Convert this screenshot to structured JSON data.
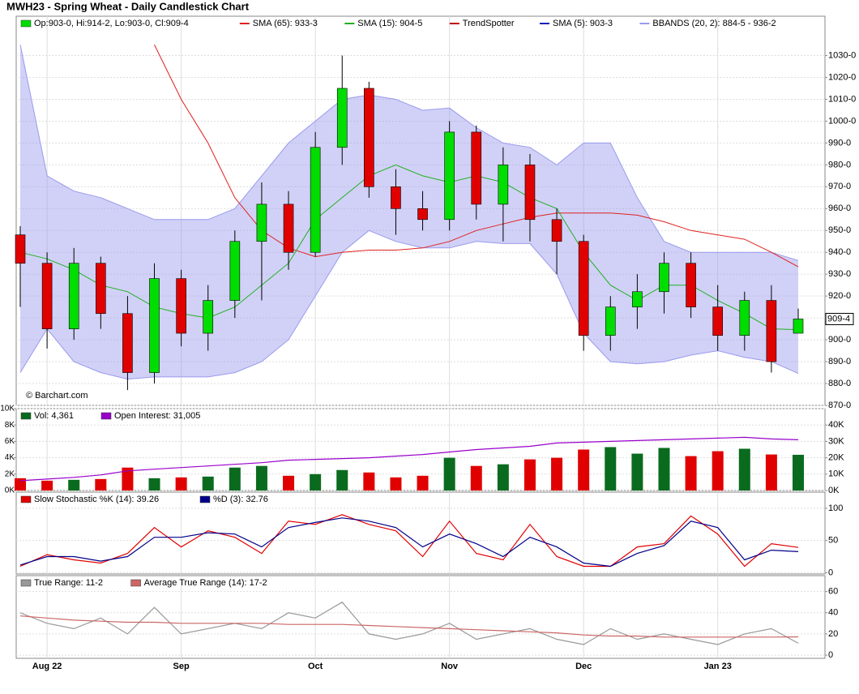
{
  "chart_data": [
    {
      "type": "candlestick",
      "title": "MWH23 - Spring Wheat - Daily Candlestick Chart",
      "ohlc_label": "Op:903-0, Hi:914-2, Lo:903-0, Cl:909-4",
      "credit": "© Barchart.com",
      "last_label": "909-4",
      "categories": [
        null,
        "Aug 22",
        null,
        null,
        null,
        null,
        "Sep",
        null,
        null,
        null,
        null,
        "Oct",
        null,
        null,
        null,
        null,
        "Nov",
        null,
        null,
        null,
        null,
        "Dec",
        null,
        null,
        null,
        null,
        "Jan 23",
        null,
        null,
        null
      ],
      "open": [
        948,
        935,
        905,
        935,
        912,
        885,
        928,
        903,
        918,
        945,
        962,
        940,
        988,
        1015,
        970,
        960,
        955,
        995,
        962,
        980,
        955,
        945,
        902,
        915,
        922,
        935,
        915,
        902,
        918,
        903
      ],
      "high": [
        952,
        940,
        942,
        938,
        920,
        935,
        932,
        925,
        950,
        972,
        968,
        995,
        1030,
        1018,
        978,
        968,
        1000,
        998,
        988,
        985,
        960,
        948,
        920,
        930,
        940,
        940,
        925,
        922,
        925,
        914.25
      ],
      "low": [
        915,
        896,
        900,
        905,
        877,
        880,
        897,
        895,
        910,
        918,
        932,
        938,
        980,
        965,
        948,
        950,
        950,
        955,
        945,
        945,
        930,
        895,
        895,
        905,
        912,
        910,
        895,
        895,
        885,
        903
      ],
      "close": [
        935,
        905,
        935,
        912,
        885,
        928,
        903,
        918,
        945,
        962,
        940,
        988,
        1015,
        970,
        960,
        955,
        995,
        962,
        980,
        955,
        945,
        902,
        915,
        922,
        935,
        915,
        902,
        918,
        890,
        909.5
      ],
      "up_color": "#00dd00",
      "down_color": "#e00000",
      "series": [
        {
          "name": "SMA (65): 933-3",
          "color": "#e02020",
          "values": [
            null,
            null,
            null,
            null,
            null,
            1035,
            1010,
            990,
            965,
            950,
            942,
            938,
            940,
            941,
            941,
            942,
            945,
            950,
            953,
            956,
            958,
            958,
            958,
            957,
            954,
            950,
            948,
            946,
            940,
            933.375
          ]
        },
        {
          "name": "SMA (15): 904-5",
          "color": "#20b020",
          "values": [
            940,
            937,
            932,
            925,
            922,
            915,
            912,
            910,
            915,
            925,
            935,
            955,
            965,
            975,
            980,
            975,
            972,
            975,
            972,
            965,
            960,
            940,
            925,
            918,
            925,
            925,
            918,
            912,
            905,
            904.625
          ]
        },
        {
          "name": "TrendSpotter",
          "color": "#c00000"
        },
        {
          "name": "SMA (5): 903-3",
          "color": "#1020c0"
        },
        {
          "name": "BBANDS (20, 2): 884-5 - 936-2",
          "color": "#9999ee",
          "upper": [
            1035,
            975,
            968,
            965,
            960,
            955,
            955,
            955,
            960,
            975,
            990,
            1000,
            1010,
            1012,
            1010,
            1005,
            1006,
            997,
            990,
            988,
            980,
            990,
            990,
            965,
            945,
            940,
            940,
            940,
            940,
            936.25
          ],
          "lower": [
            885,
            905,
            890,
            885,
            882,
            883,
            883,
            883,
            885,
            890,
            900,
            920,
            940,
            950,
            945,
            942,
            942,
            945,
            944,
            944,
            930,
            903,
            890,
            889,
            890,
            893,
            895,
            892,
            890,
            884.625
          ]
        }
      ],
      "ylim": [
        870,
        1048
      ],
      "yticks": [
        {
          "value": 870,
          "label": "870-0"
        },
        {
          "value": 880,
          "label": "880-0"
        },
        {
          "value": 890,
          "label": "890-0"
        },
        {
          "value": 900,
          "label": "900-0"
        },
        {
          "value": 910,
          "label": "910-0"
        },
        {
          "value": 920,
          "label": "920-0"
        },
        {
          "value": 930,
          "label": "930-0"
        },
        {
          "value": 940,
          "label": "940-0"
        },
        {
          "value": 950,
          "label": "950-0"
        },
        {
          "value": 960,
          "label": "960-0"
        },
        {
          "value": 970,
          "label": "970-0"
        },
        {
          "value": 980,
          "label": "980-0"
        },
        {
          "value": 990,
          "label": "990-0"
        },
        {
          "value": 1000,
          "label": "1000-0"
        },
        {
          "value": 1010,
          "label": "1010-0"
        },
        {
          "value": 1020,
          "label": "1020-0"
        },
        {
          "value": 1030,
          "label": "1030-0"
        }
      ],
      "grid": true
    },
    {
      "type": "bar",
      "up_color": "#0a6b1f",
      "down_color": "#e00000",
      "series": [
        {
          "name": "Vol: 4,361",
          "color": "#0a6b1f",
          "values": [
            1500,
            1200,
            1300,
            1400,
            2800,
            1500,
            1600,
            1700,
            2800,
            3000,
            1800,
            2000,
            2500,
            2200,
            1600,
            1800,
            4000,
            3000,
            3200,
            3800,
            4000,
            5000,
            5300,
            4500,
            5200,
            4200,
            4800,
            5100,
            4400,
            4361
          ]
        },
        {
          "name": "Open Interest: 31,005",
          "color": "#9900cc",
          "axis": "y2",
          "values": [
            6000,
            7000,
            8000,
            9500,
            12000,
            13000,
            14000,
            15000,
            16000,
            17000,
            18500,
            19000,
            19500,
            20000,
            21000,
            22000,
            23500,
            25000,
            26000,
            27000,
            29000,
            29500,
            30000,
            30500,
            31000,
            31500,
            32000,
            32500,
            31500,
            31005
          ]
        }
      ],
      "ylim": [
        0,
        10000
      ],
      "yticks": [
        {
          "value": 0,
          "label": "0K"
        },
        {
          "value": 2000,
          "label": "2K"
        },
        {
          "value": 4000,
          "label": "4K"
        },
        {
          "value": 6000,
          "label": "6K"
        },
        {
          "value": 8000,
          "label": "8K"
        },
        {
          "value": 10000,
          "label": "10K"
        }
      ],
      "y2lim": [
        0,
        50000
      ],
      "y2ticks": [
        {
          "value": 0,
          "label": "0K"
        },
        {
          "value": 10000,
          "label": "10K"
        },
        {
          "value": 20000,
          "label": "20K"
        },
        {
          "value": 30000,
          "label": "30K"
        },
        {
          "value": 40000,
          "label": "40K"
        }
      ],
      "grid": true
    },
    {
      "type": "line",
      "series": [
        {
          "name": "Slow Stochastic %K (14): 39.26",
          "color": "#e00000",
          "values": [
            10,
            28,
            20,
            15,
            30,
            70,
            40,
            65,
            55,
            30,
            80,
            75,
            90,
            75,
            65,
            25,
            80,
            30,
            20,
            75,
            25,
            10,
            10,
            40,
            45,
            88,
            60,
            10,
            45,
            39.26
          ]
        },
        {
          "name": "%D (3): 32.76",
          "color": "#00008b",
          "values": [
            12,
            25,
            25,
            18,
            25,
            55,
            55,
            62,
            60,
            40,
            70,
            78,
            85,
            80,
            70,
            40,
            60,
            45,
            25,
            55,
            40,
            15,
            10,
            30,
            42,
            80,
            70,
            20,
            35,
            32.76
          ]
        }
      ],
      "ylim": [
        -2,
        125
      ],
      "yticks": [
        0,
        50,
        100
      ],
      "grid": true
    },
    {
      "type": "line",
      "series": [
        {
          "name": "True Range: 11-2",
          "color": "#999999",
          "values": [
            40,
            30,
            25,
            35,
            20,
            45,
            20,
            25,
            30,
            25,
            40,
            35,
            50,
            20,
            15,
            20,
            30,
            15,
            20,
            25,
            15,
            10,
            25,
            15,
            20,
            15,
            10,
            20,
            25,
            11.25
          ]
        },
        {
          "name": "Average True Range (14): 17-2",
          "color": "#cc6666",
          "values": [
            37,
            35,
            33,
            32,
            31,
            31,
            30,
            30,
            30,
            30,
            29,
            29,
            29,
            28,
            27,
            26,
            25,
            24,
            23,
            22,
            21,
            19,
            18,
            18,
            17,
            17,
            17,
            17,
            17,
            17.25
          ]
        }
      ],
      "ylim": [
        -3,
        75
      ],
      "yticks": [
        0,
        20,
        40,
        60
      ],
      "grid": true
    }
  ]
}
